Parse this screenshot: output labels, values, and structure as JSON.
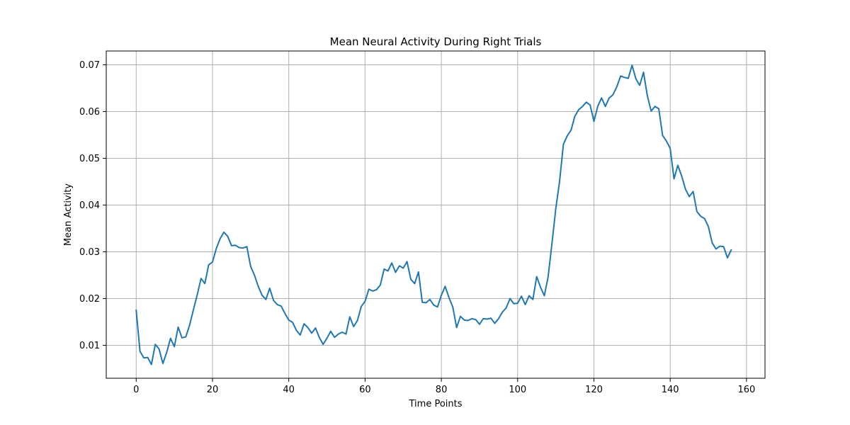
{
  "chart_data": {
    "type": "line",
    "title": "Mean Neural Activity During Right Trials",
    "xlabel": "Time Points",
    "ylabel": "Mean Activity",
    "xlim": [
      -7.85,
      164.85
    ],
    "ylim": [
      0.00295,
      0.07295
    ],
    "xticks": [
      0,
      20,
      40,
      60,
      80,
      100,
      120,
      140,
      160
    ],
    "xtick_labels": [
      "0",
      "20",
      "40",
      "60",
      "80",
      "100",
      "120",
      "140",
      "160"
    ],
    "yticks": [
      0.01,
      0.02,
      0.03,
      0.04,
      0.05,
      0.06,
      0.07
    ],
    "ytick_labels": [
      "0.01",
      "0.02",
      "0.03",
      "0.04",
      "0.05",
      "0.06",
      "0.07"
    ],
    "grid": true,
    "line_color": "#1f77b4",
    "series": [
      {
        "name": "",
        "x_start": 0,
        "x_step": 1,
        "values": [
          0.0175,
          0.0087,
          0.0073,
          0.0074,
          0.0059,
          0.0102,
          0.0092,
          0.0061,
          0.0085,
          0.0115,
          0.0097,
          0.0139,
          0.0116,
          0.0118,
          0.0143,
          0.0176,
          0.0208,
          0.0243,
          0.0232,
          0.0272,
          0.0278,
          0.0307,
          0.0328,
          0.0342,
          0.0333,
          0.0313,
          0.0314,
          0.0309,
          0.0308,
          0.0311,
          0.0269,
          0.025,
          0.0226,
          0.0207,
          0.0198,
          0.0222,
          0.0196,
          0.0187,
          0.0184,
          0.0168,
          0.0154,
          0.0149,
          0.0132,
          0.0122,
          0.0146,
          0.0138,
          0.0126,
          0.0137,
          0.0117,
          0.0102,
          0.0115,
          0.013,
          0.0117,
          0.0124,
          0.0128,
          0.0124,
          0.0161,
          0.014,
          0.0153,
          0.0183,
          0.0194,
          0.022,
          0.0216,
          0.0219,
          0.0229,
          0.0263,
          0.0259,
          0.0276,
          0.0256,
          0.027,
          0.0265,
          0.0279,
          0.0241,
          0.0232,
          0.0257,
          0.0192,
          0.0191,
          0.0198,
          0.0186,
          0.0182,
          0.0207,
          0.0226,
          0.0202,
          0.0182,
          0.0138,
          0.0162,
          0.0154,
          0.0153,
          0.0157,
          0.0155,
          0.0145,
          0.0157,
          0.0156,
          0.0158,
          0.0147,
          0.0157,
          0.0171,
          0.018,
          0.02,
          0.0189,
          0.019,
          0.0205,
          0.0187,
          0.0206,
          0.0198,
          0.0247,
          0.0224,
          0.0206,
          0.0247,
          0.0318,
          0.0392,
          0.0451,
          0.053,
          0.0548,
          0.056,
          0.059,
          0.0604,
          0.0611,
          0.062,
          0.0614,
          0.0579,
          0.0611,
          0.0629,
          0.0611,
          0.0629,
          0.0636,
          0.0653,
          0.0676,
          0.0673,
          0.0671,
          0.0699,
          0.067,
          0.0656,
          0.0684,
          0.0634,
          0.0601,
          0.0611,
          0.0606,
          0.0549,
          0.0537,
          0.0521,
          0.0456,
          0.0485,
          0.0462,
          0.0434,
          0.0418,
          0.0429,
          0.0386,
          0.0376,
          0.0371,
          0.0354,
          0.0319,
          0.0306,
          0.0312,
          0.0311,
          0.0287,
          0.0304
        ]
      }
    ]
  }
}
